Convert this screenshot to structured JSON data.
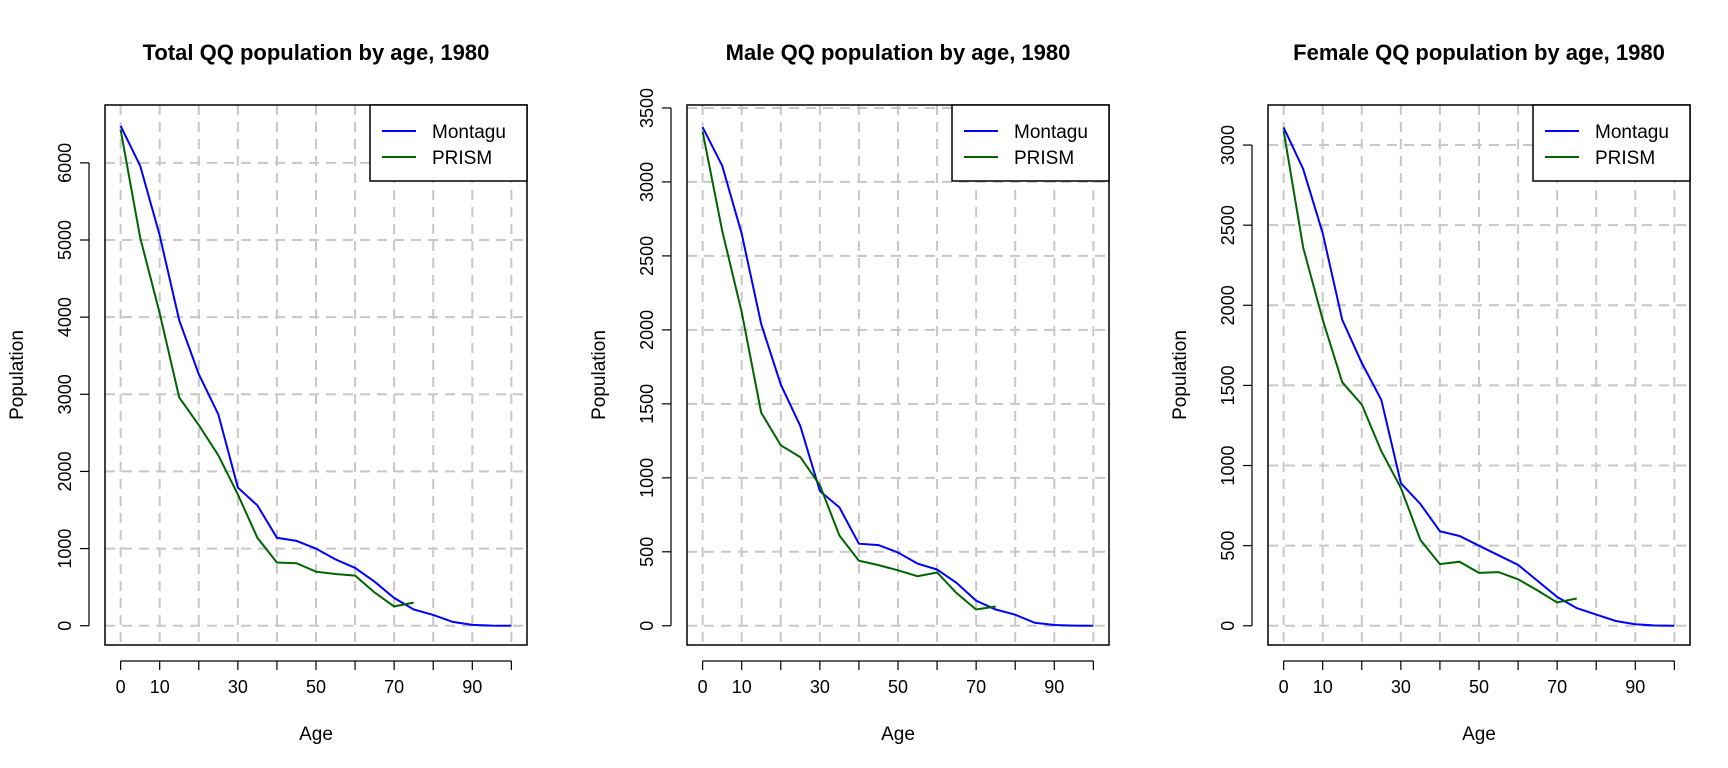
{
  "colors": {
    "montagu": "#0000ff",
    "prism": "#006400",
    "grid": "#c8c8c8"
  },
  "chart_data": [
    {
      "type": "line",
      "title": "Total QQ population by age, 1980",
      "xlabel": "Age",
      "ylabel": "Population",
      "xlim": [
        -4,
        104
      ],
      "ylim": [
        -250,
        6750
      ],
      "x_ticks": [
        0,
        10,
        30,
        50,
        70,
        90
      ],
      "x_minor_ticks": [
        20,
        40,
        60,
        80,
        100
      ],
      "y_ticks": [
        0,
        1000,
        2000,
        3000,
        4000,
        5000,
        6000
      ],
      "grid": true,
      "legend_position": "top-right",
      "series": [
        {
          "name": "Montagu",
          "x": [
            0,
            5,
            10,
            15,
            20,
            25,
            30,
            35,
            40,
            45,
            50,
            55,
            60,
            65,
            70,
            75,
            80,
            85,
            90,
            95,
            100
          ],
          "values": [
            6480,
            5960,
            5060,
            3960,
            3260,
            2740,
            1790,
            1560,
            1140,
            1100,
            1000,
            860,
            750,
            570,
            360,
            210,
            140,
            50,
            10,
            2,
            0
          ]
        },
        {
          "name": "PRISM",
          "x": [
            0,
            5,
            10,
            15,
            20,
            25,
            30,
            35,
            40,
            45,
            50,
            55,
            60,
            65,
            70,
            75
          ],
          "values": [
            6430,
            5030,
            4050,
            2960,
            2600,
            2210,
            1700,
            1140,
            820,
            810,
            700,
            670,
            650,
            430,
            250,
            300
          ]
        }
      ]
    },
    {
      "type": "line",
      "title": "Male QQ population by age, 1980",
      "xlabel": "Age",
      "ylabel": "Population",
      "xlim": [
        -4,
        104
      ],
      "ylim": [
        -130,
        3520
      ],
      "x_ticks": [
        0,
        10,
        30,
        50,
        70,
        90
      ],
      "x_minor_ticks": [
        20,
        40,
        60,
        80,
        100
      ],
      "y_ticks": [
        0,
        500,
        1000,
        1500,
        2000,
        2500,
        3000,
        3500
      ],
      "grid": true,
      "legend_position": "top-right",
      "series": [
        {
          "name": "Montagu",
          "x": [
            0,
            5,
            10,
            15,
            20,
            25,
            30,
            35,
            40,
            45,
            50,
            55,
            60,
            65,
            70,
            75,
            80,
            85,
            90,
            95,
            100
          ],
          "values": [
            3370,
            3110,
            2650,
            2040,
            1630,
            1350,
            910,
            800,
            555,
            545,
            495,
            420,
            380,
            290,
            170,
            110,
            75,
            20,
            5,
            1,
            0
          ]
        },
        {
          "name": "PRISM",
          "x": [
            0,
            5,
            10,
            15,
            20,
            25,
            30,
            35,
            40,
            45,
            50,
            55,
            60,
            65,
            70,
            75
          ],
          "values": [
            3340,
            2670,
            2120,
            1440,
            1220,
            1140,
            950,
            610,
            440,
            410,
            375,
            335,
            360,
            220,
            110,
            130
          ]
        }
      ]
    },
    {
      "type": "line",
      "title": "Female QQ population by age, 1980",
      "xlabel": "Age",
      "ylabel": "Population",
      "xlim": [
        -4,
        104
      ],
      "ylim": [
        -120,
        3250
      ],
      "x_ticks": [
        0,
        10,
        30,
        50,
        70,
        90
      ],
      "x_minor_ticks": [
        20,
        40,
        60,
        80,
        100
      ],
      "y_ticks": [
        0,
        500,
        1000,
        1500,
        2000,
        2500,
        3000
      ],
      "grid": true,
      "legend_position": "top-right",
      "series": [
        {
          "name": "Montagu",
          "x": [
            0,
            5,
            10,
            15,
            20,
            25,
            30,
            35,
            40,
            45,
            50,
            55,
            60,
            65,
            70,
            75,
            80,
            85,
            90,
            95,
            100
          ],
          "values": [
            3110,
            2850,
            2450,
            1910,
            1640,
            1410,
            890,
            760,
            590,
            560,
            500,
            440,
            380,
            280,
            180,
            110,
            70,
            30,
            10,
            2,
            0
          ]
        },
        {
          "name": "PRISM",
          "x": [
            0,
            5,
            10,
            15,
            20,
            25,
            30,
            35,
            40,
            45,
            50,
            55,
            60,
            65,
            70,
            75
          ],
          "values": [
            3090,
            2360,
            1910,
            1520,
            1380,
            1090,
            860,
            535,
            385,
            400,
            330,
            335,
            290,
            220,
            145,
            170
          ]
        }
      ]
    }
  ]
}
